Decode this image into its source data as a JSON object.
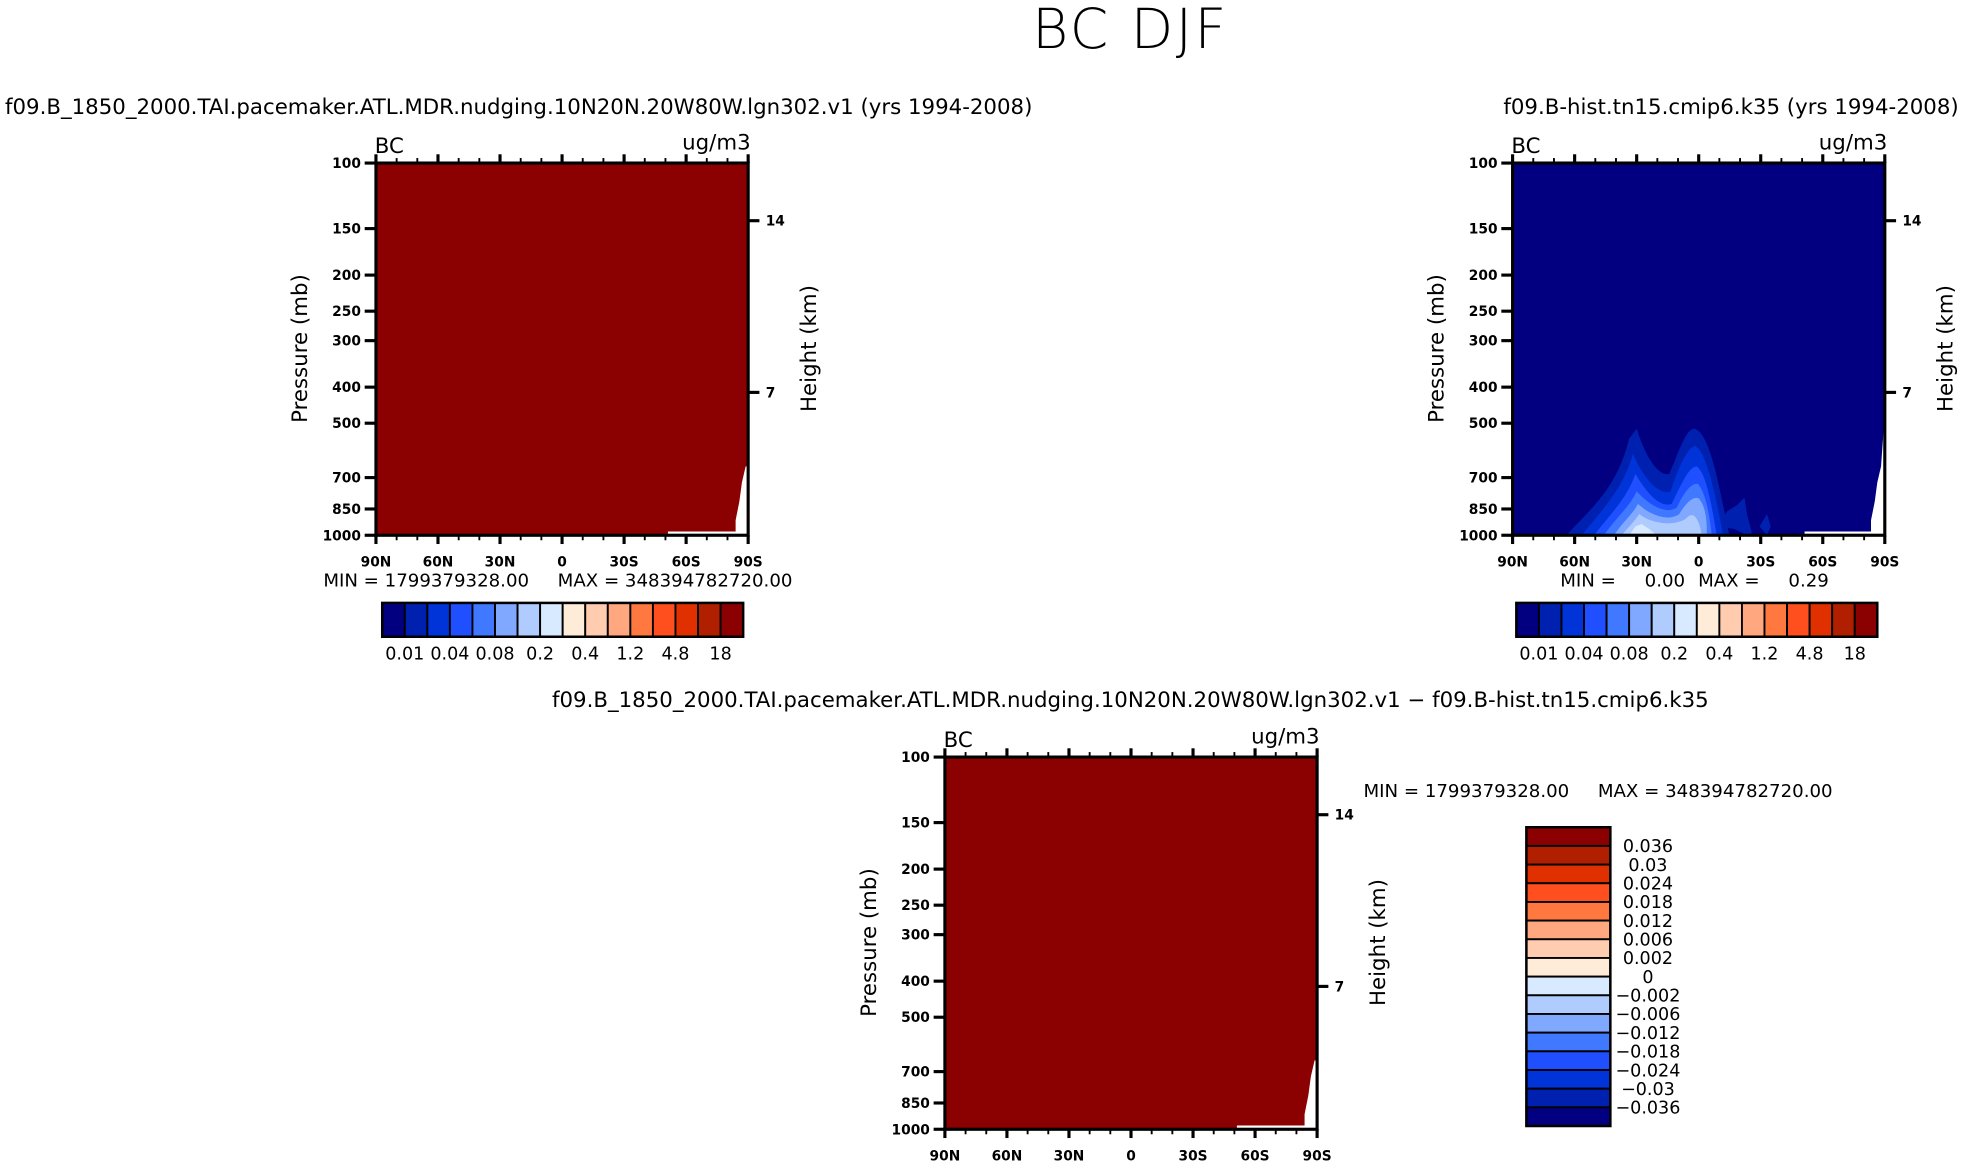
{
  "title": "BC DJF",
  "colors": [
    "#020080",
    "#0020B0",
    "#0033D8",
    "#1F4FFF",
    "#4078FF",
    "#80A8FF",
    "#B0CCFF",
    "#D8EAFF",
    "#FFECD8",
    "#FFCCB0",
    "#FFA880",
    "#FF7840",
    "#FF4F1F",
    "#E03000",
    "#B02000",
    "#8B0000"
  ],
  "chart_data": [
    {
      "type": "heatmap",
      "title": "f09.B_1850_2000.TAI.pacemaker.ATL.MDR.nudging.10N20N.20W80W.lgn302.v1 (yrs 1994-2008)",
      "left_label": "BC",
      "right_label": "ug/m3",
      "ylabel": "Pressure (mb)",
      "y2label": "Height (km)",
      "xticks": [
        "90N",
        "60N",
        "30N",
        "0",
        "30S",
        "60S",
        "90S"
      ],
      "yticks": [
        "100",
        "150",
        "200",
        "250",
        "300",
        "400",
        "500",
        "700",
        "850",
        "1000"
      ],
      "y2ticks": [
        "14",
        "7"
      ],
      "min_text": "MIN = 1799379328.00",
      "max_text": "MAX = 348394782720.00",
      "colorbar_labels": [
        "0.01",
        "0.04",
        "0.08",
        "0.2",
        "0.4",
        "1.2",
        "4.8",
        "18"
      ],
      "field": "saturated at highest level (>18) everywhere"
    },
    {
      "type": "heatmap",
      "title": "f09.B-hist.tn15.cmip6.k35 (yrs 1994-2008)",
      "left_label": "BC",
      "right_label": "ug/m3",
      "ylabel": "Pressure (mb)",
      "y2label": "Height (km)",
      "xticks": [
        "90N",
        "60N",
        "30N",
        "0",
        "30S",
        "60S",
        "90S"
      ],
      "yticks": [
        "100",
        "150",
        "200",
        "250",
        "300",
        "400",
        "500",
        "700",
        "850",
        "1000"
      ],
      "y2ticks": [
        "14",
        "7"
      ],
      "min_text": "MIN =     0.00",
      "max_text": "MAX =     0.29",
      "colorbar_labels": [
        "0.01",
        "0.04",
        "0.08",
        "0.2",
        "0.4",
        "1.2",
        "4.8",
        "18"
      ],
      "field": "max ~0.29 near surface 30N-0, two lobes reaching ~500mb"
    },
    {
      "type": "heatmap",
      "title": "f09.B_1850_2000.TAI.pacemaker.ATL.MDR.nudging.10N20N.20W80W.lgn302.v1  −  f09.B-hist.tn15.cmip6.k35",
      "left_label": "BC",
      "right_label": "ug/m3",
      "ylabel": "Pressure (mb)",
      "y2label": "Height (km)",
      "xticks": [
        "90N",
        "60N",
        "30N",
        "0",
        "30S",
        "60S",
        "90S"
      ],
      "yticks": [
        "100",
        "150",
        "200",
        "250",
        "300",
        "400",
        "500",
        "700",
        "850",
        "1000"
      ],
      "y2ticks": [
        "14",
        "7"
      ],
      "min_text": "MIN = 1799379328.00",
      "max_text": "MAX = 348394782720.00",
      "colorbar_labels": [
        "0.036",
        "0.03",
        "0.024",
        "0.018",
        "0.012",
        "0.006",
        "0.002",
        "0",
        "−0.002",
        "−0.006",
        "−0.012",
        "−0.018",
        "−0.024",
        "−0.03",
        "−0.036"
      ],
      "field": "saturated at highest level (>0.036) everywhere"
    }
  ]
}
